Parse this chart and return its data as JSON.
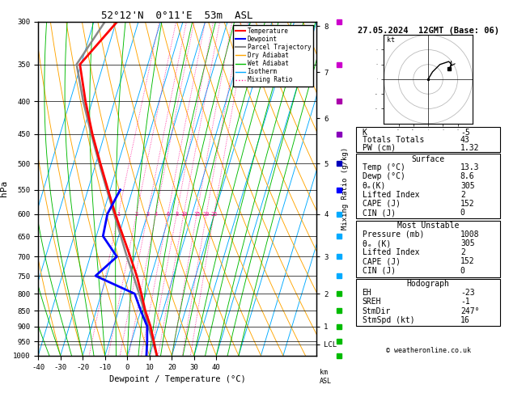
{
  "title": "52°12'N  0°11'E  53m  ASL",
  "date_title": "27.05.2024  12GMT (Base: 06)",
  "xlabel": "Dewpoint / Temperature (°C)",
  "isotherm_color": "#00AAFF",
  "dry_adiabat_color": "#FFA500",
  "wet_adiabat_color": "#00BB00",
  "mixing_ratio_color": "#FF1493",
  "temp_color": "#FF0000",
  "dewp_color": "#0000FF",
  "parcel_color": "#888888",
  "temp_data_pressure": [
    1000,
    950,
    900,
    850,
    800,
    750,
    700,
    650,
    600,
    550,
    500,
    450,
    400,
    350,
    300
  ],
  "temp_data_temp": [
    13.3,
    10.0,
    6.5,
    2.0,
    -2.0,
    -6.5,
    -12.0,
    -18.0,
    -24.5,
    -31.0,
    -38.0,
    -45.5,
    -53.0,
    -60.5,
    -49.5
  ],
  "dewp_data_pressure": [
    1000,
    950,
    900,
    850,
    800,
    750,
    700,
    650,
    600,
    550
  ],
  "dewp_data_temp": [
    8.6,
    7.0,
    5.0,
    0.0,
    -5.0,
    -25.0,
    -18.0,
    -27.0,
    -28.0,
    -25.5
  ],
  "parcel_data_pressure": [
    1000,
    950,
    900,
    850,
    800,
    750,
    700,
    650,
    600,
    550,
    500,
    450,
    400,
    350,
    300
  ],
  "parcel_data_temp": [
    13.3,
    9.5,
    5.5,
    1.5,
    -3.0,
    -8.0,
    -13.5,
    -19.0,
    -25.0,
    -31.5,
    -38.5,
    -46.0,
    -54.0,
    -62.0,
    -55.0
  ],
  "pressure_levels": [
    300,
    350,
    400,
    450,
    500,
    550,
    600,
    650,
    700,
    750,
    800,
    850,
    900,
    950,
    1000
  ],
  "km_ticks": [
    8,
    7,
    6,
    5,
    4,
    3,
    2,
    1
  ],
  "km_pressures": [
    305,
    360,
    425,
    500,
    600,
    700,
    800,
    900
  ],
  "lcl_pressure": 960,
  "mixing_ratios": [
    1,
    2,
    3,
    4,
    6,
    8,
    10,
    15,
    20,
    25
  ],
  "K": -5,
  "Totals_Totals": 43,
  "PW_cm": 1.32,
  "Surf_Temp": 13.3,
  "Surf_Dewp": 8.6,
  "Surf_theta_e": 305,
  "Surf_LI": 2,
  "Surf_CAPE": 152,
  "Surf_CIN": 0,
  "MU_Pressure": 1008,
  "MU_theta_e": 305,
  "MU_LI": 2,
  "MU_CAPE": 152,
  "MU_CIN": 0,
  "EH": -23,
  "SREH": -1,
  "StmDir": 247,
  "StmSpd_kt": 16,
  "hodo_u": [
    0,
    3,
    8,
    14,
    16,
    14
  ],
  "hodo_v": [
    0,
    5,
    10,
    12,
    10,
    7
  ],
  "wind_pressures": [
    1000,
    950,
    900,
    850,
    800,
    750,
    700,
    650,
    600,
    550,
    500,
    450,
    400,
    350,
    300
  ],
  "wind_colors": [
    "#00BB00",
    "#00BB00",
    "#00BB00",
    "#00BB00",
    "#00BB00",
    "#00AAFF",
    "#00AAFF",
    "#00AAFF",
    "#00AAFF",
    "#0000FF",
    "#0000BB",
    "#8800BB",
    "#AA00AA",
    "#CC00CC",
    "#CC00CC"
  ]
}
